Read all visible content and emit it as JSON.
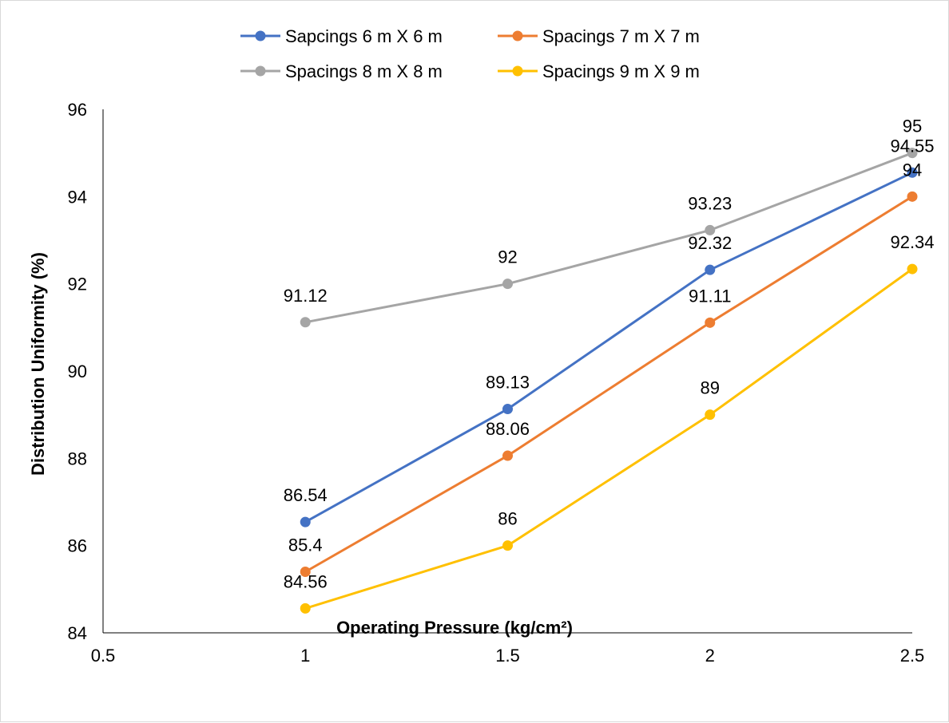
{
  "chart_data": {
    "type": "line",
    "xlabel": "Operating Pressure (kg/cm²)",
    "ylabel": "Distribution Uniformity (%)",
    "xlim": [
      0.5,
      2.5
    ],
    "ylim": [
      84,
      96
    ],
    "xticks": [
      "0.5",
      "1",
      "1.5",
      "2",
      "2.5"
    ],
    "yticks": [
      "84",
      "86",
      "88",
      "90",
      "92",
      "94",
      "96"
    ],
    "grid": false,
    "legend": "top",
    "x": [
      1,
      1.5,
      2,
      2.5
    ],
    "series": [
      {
        "name": "Sapcings 6 m X 6 m",
        "color": "#4472C4",
        "values": [
          86.54,
          89.13,
          92.32,
          94.55
        ],
        "labels": [
          "86.54",
          "89.13",
          "92.32",
          "94.55"
        ]
      },
      {
        "name": "Spacings 7 m X 7 m",
        "color": "#ED7D31",
        "values": [
          85.4,
          88.06,
          91.11,
          94
        ],
        "labels": [
          "85.4",
          "88.06",
          "91.11",
          "94"
        ]
      },
      {
        "name": "Spacings 8 m X 8 m",
        "color": "#A5A5A5",
        "values": [
          91.12,
          92,
          93.23,
          95
        ],
        "labels": [
          "91.12",
          "92",
          "93.23",
          "95"
        ]
      },
      {
        "name": "Spacings 9 m X 9 m",
        "color": "#FFC000",
        "values": [
          84.56,
          86,
          89,
          92.34
        ],
        "labels": [
          "84.56",
          "86",
          "89",
          "92.34"
        ]
      }
    ]
  }
}
